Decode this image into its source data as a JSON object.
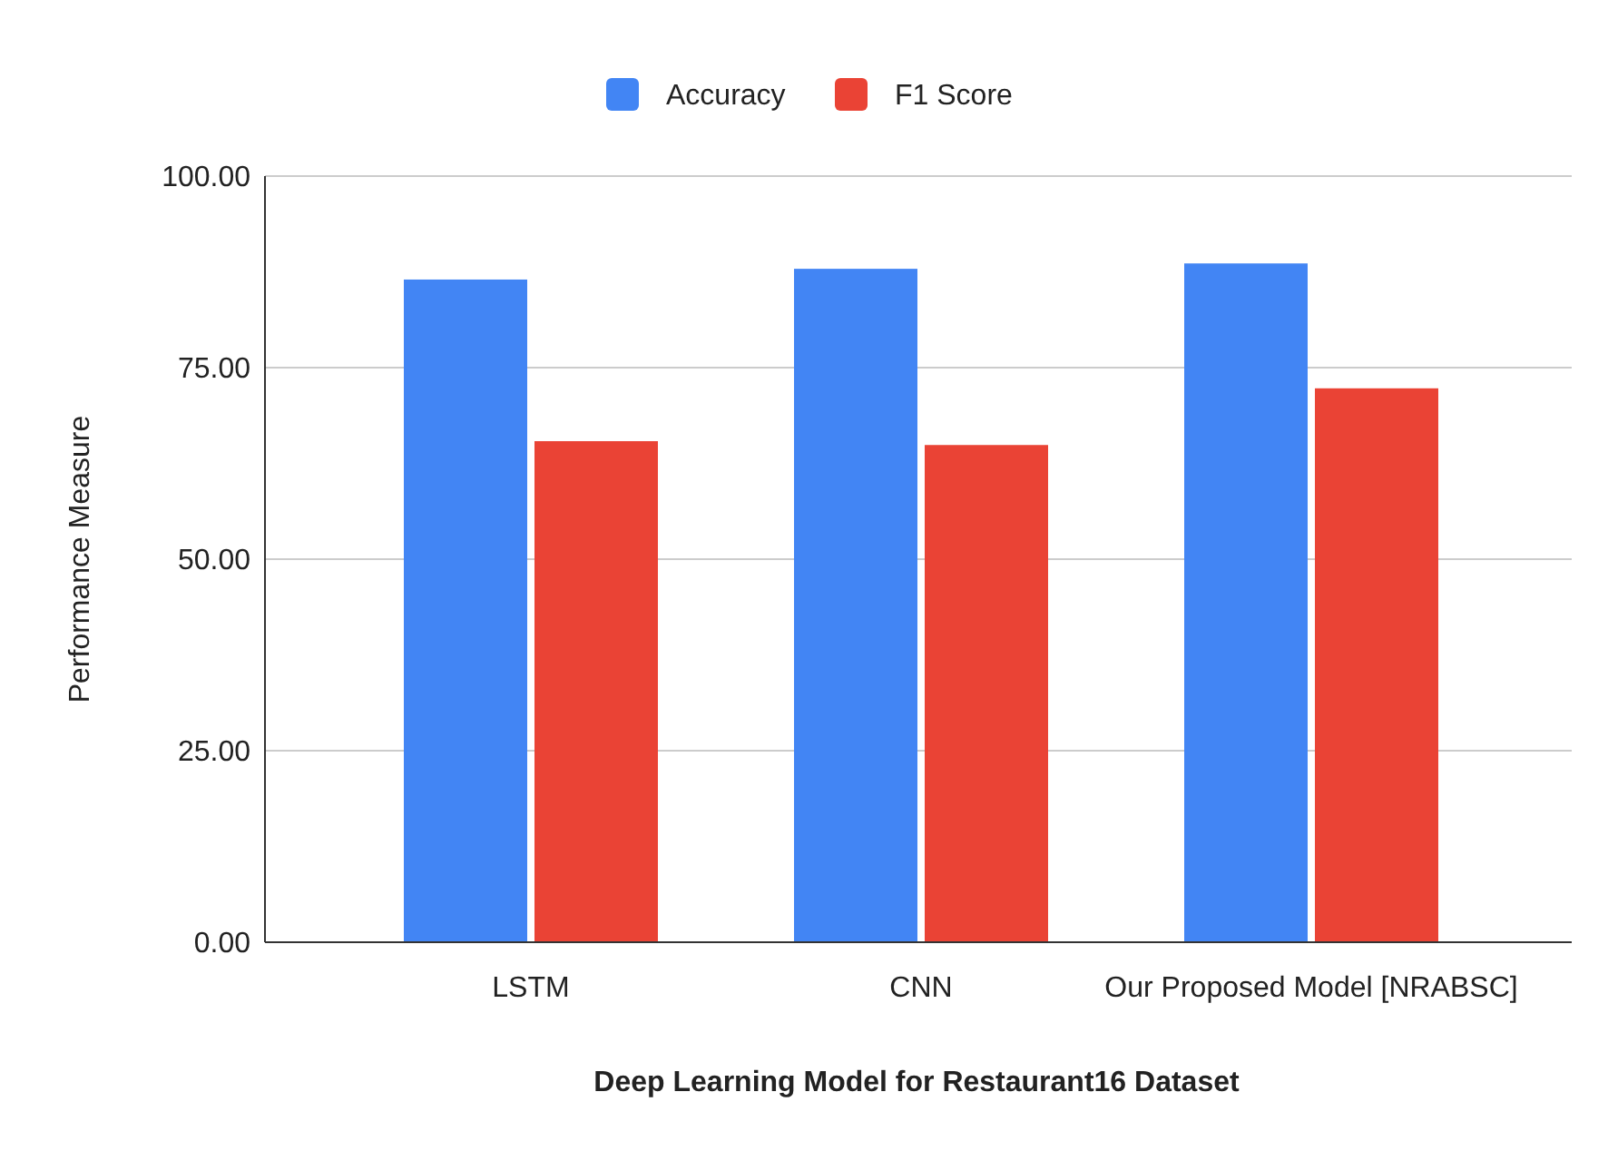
{
  "chart_data": {
    "type": "bar",
    "xlabel": "Deep Learning Model for Restaurant16 Dataset",
    "ylabel": "Performance Measure",
    "categories": [
      "LSTM",
      "CNN",
      "Our Proposed Model [NRABSC]"
    ],
    "series": [
      {
        "name": "Accuracy",
        "color": "#4285f4",
        "values": [
          86.5,
          87.9,
          88.6
        ]
      },
      {
        "name": "F1 Score",
        "color": "#ea4335",
        "values": [
          65.4,
          64.9,
          72.3
        ]
      }
    ],
    "ylim": [
      0,
      100
    ],
    "yticks": [
      {
        "value": 0,
        "label": "0.00"
      },
      {
        "value": 25,
        "label": "25.00"
      },
      {
        "value": 50,
        "label": "50.00"
      },
      {
        "value": 75,
        "label": "75.00"
      },
      {
        "value": 100,
        "label": "100.00"
      }
    ],
    "grid": "y",
    "legend": "top"
  }
}
